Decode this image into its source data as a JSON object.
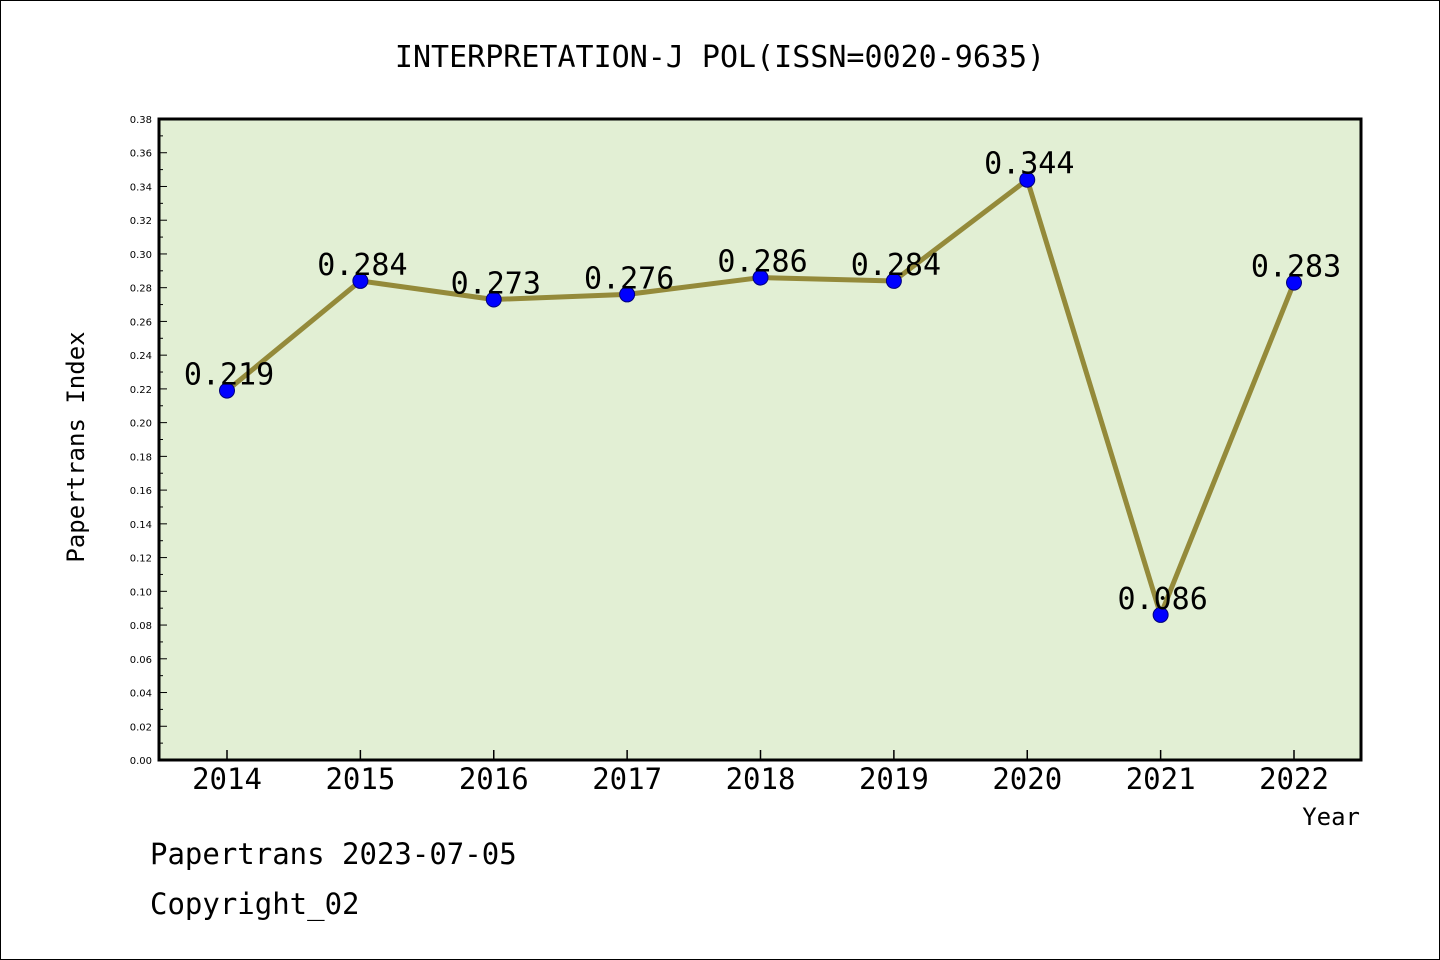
{
  "chart_data": {
    "type": "line",
    "title": "INTERPRETATION-J POL(ISSN=0020-9635)",
    "xlabel": "Year",
    "ylabel": "Papertrans Index",
    "ylim": [
      0.0,
      0.38
    ],
    "ytick_step": 0.02,
    "grid": false,
    "categories": [
      "2014",
      "2015",
      "2016",
      "2017",
      "2018",
      "2019",
      "2020",
      "2021",
      "2022"
    ],
    "series": [
      {
        "values": [
          0.219,
          0.284,
          0.273,
          0.276,
          0.286,
          0.284,
          0.344,
          0.086,
          0.283
        ],
        "labels": [
          "0.219",
          "0.284",
          "0.273",
          "0.276",
          "0.286",
          "0.284",
          "0.344",
          "0.086",
          "0.283"
        ]
      }
    ],
    "colors": {
      "plot_background": "#e2efd4",
      "line": "#948a3a",
      "marker": "#0000ff"
    }
  },
  "footer": {
    "line1": "Papertrans 2023-07-05",
    "line2": "Copyright_02"
  }
}
